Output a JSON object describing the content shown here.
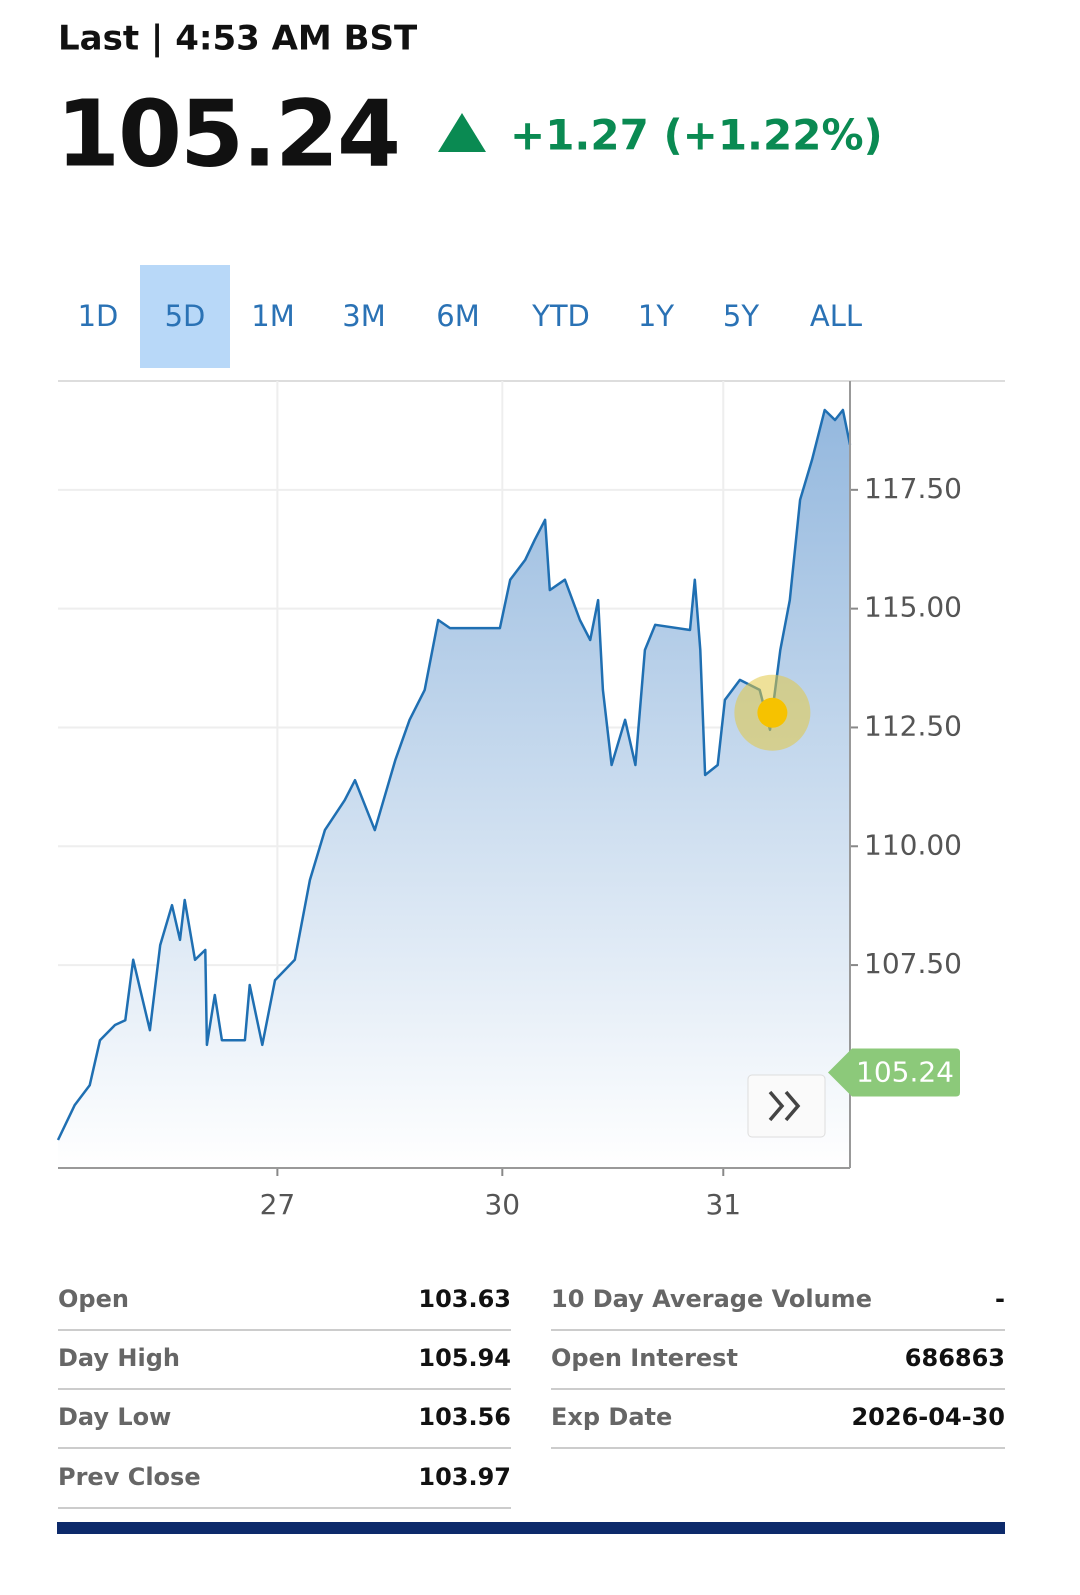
{
  "header": {
    "last_time": "Last | 4:53 AM BST",
    "price": "105.24",
    "change": "+1.27 (+1.22%)"
  },
  "tabs": {
    "items": [
      "1D",
      "5D",
      "1M",
      "3M",
      "6M",
      "YTD",
      "1Y",
      "5Y",
      "ALL"
    ],
    "active_index": 1
  },
  "chart_data": {
    "type": "area",
    "color": "#1f6fb2",
    "grid": true,
    "x": [
      0,
      2.1,
      4.0,
      5.3,
      7.2,
      8.5,
      9.5,
      10.4,
      11.6,
      12.9,
      14.4,
      15.4,
      16.0,
      17.3,
      18.6,
      18.8,
      19.8,
      20.7,
      23.6,
      24.2,
      25.8,
      27.4,
      29.9,
      31.8,
      33.7,
      36.2,
      37.5,
      40.0,
      42.6,
      44.4,
      46.3,
      48.0,
      49.5,
      55.8,
      57.1,
      59.0,
      60.2,
      61.5,
      62.1,
      64.0,
      65.9,
      67.2,
      68.2,
      68.8,
      69.9,
      71.6,
      72.9,
      74.1,
      75.4,
      79.8,
      80.4,
      81.1,
      81.7,
      83.3,
      84.2,
      86.1,
      88.6,
      89.9,
      91.2,
      92.4,
      93.7,
      95.2,
      96.8,
      98.1,
      99.1,
      100
    ],
    "values": [
      103.82,
      104.55,
      104.97,
      105.92,
      106.24,
      106.34,
      107.61,
      106.97,
      106.13,
      107.92,
      108.76,
      108.03,
      108.87,
      107.61,
      107.82,
      105.82,
      106.87,
      105.92,
      105.92,
      107.08,
      105.82,
      107.18,
      107.61,
      109.29,
      110.34,
      110.97,
      111.39,
      110.34,
      111.82,
      112.66,
      113.29,
      114.76,
      114.59,
      114.59,
      115.61,
      116.03,
      116.45,
      116.87,
      115.39,
      115.61,
      114.76,
      114.34,
      115.18,
      113.29,
      111.71,
      112.66,
      111.71,
      114.13,
      114.66,
      114.55,
      115.61,
      114.13,
      111.5,
      111.71,
      113.08,
      113.5,
      113.29,
      112.45,
      114.13,
      115.18,
      117.29,
      118.13,
      119.18,
      118.97,
      119.18,
      118.45
    ],
    "xlim": [
      0,
      100
    ],
    "xticks": [
      {
        "value": 27.7,
        "label": "27"
      },
      {
        "value": 56.1,
        "label": "30"
      },
      {
        "value": 84.0,
        "label": "31"
      }
    ],
    "ylim": [
      103.23,
      119.79
    ],
    "yticks": [
      {
        "value": 107.5,
        "label": "107.50"
      },
      {
        "value": 110,
        "label": "110.00"
      },
      {
        "value": 112.5,
        "label": "112.50"
      },
      {
        "value": 115,
        "label": "115.00"
      },
      {
        "value": 117.5,
        "label": "117.50"
      }
    ],
    "last_price": 105.24,
    "highlight": {
      "x": 90.2,
      "value": 112.81
    }
  },
  "stats": {
    "left": [
      {
        "label": "Open",
        "value": "103.63"
      },
      {
        "label": "Day High",
        "value": "105.94"
      },
      {
        "label": "Day Low",
        "value": "103.56"
      },
      {
        "label": "Prev Close",
        "value": "103.97"
      }
    ],
    "right": [
      {
        "label": "10 Day Average Volume",
        "value": "-"
      },
      {
        "label": "Open Interest",
        "value": "686863"
      },
      {
        "label": "Exp Date",
        "value": "2026-04-30"
      }
    ]
  }
}
